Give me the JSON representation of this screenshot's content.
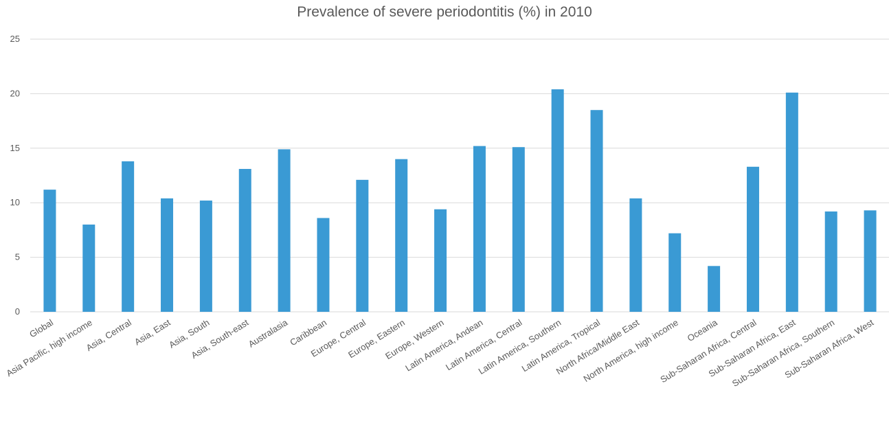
{
  "chart_data": {
    "type": "bar",
    "title": "Prevalence of severe periodontitis (%) in 2010",
    "xlabel": "",
    "ylabel": "",
    "ylim": [
      0,
      25
    ],
    "yticks": [
      0,
      5,
      10,
      15,
      20,
      25
    ],
    "grid": true,
    "legend": "none",
    "bar_color": "#3a9ad4",
    "categories": [
      "Global",
      "Asia Pacific, high income",
      "Asia, Central",
      "Asia, East",
      "Asia, South",
      "Asia, South-east",
      "Australasia",
      "Caribbean",
      "Europe, Central",
      "Europe, Eastern",
      "Europe, Western",
      "Latin America, Andean",
      "Latin America, Central",
      "Latin America, Southern",
      "Latin America, Tropical",
      "North Africa/Middle East",
      "North America, high income",
      "Oceania",
      "Sub-Saharan Africa, Central",
      "Sub-Saharan Africa, East",
      "Sub-Saharan Africa, Southern",
      "Sub-Saharan Africa, West"
    ],
    "values": [
      11.2,
      8.0,
      13.8,
      10.4,
      10.2,
      13.1,
      14.9,
      8.6,
      12.1,
      14.0,
      9.4,
      15.2,
      15.1,
      20.4,
      18.5,
      10.4,
      7.2,
      4.2,
      13.3,
      20.1,
      9.2,
      9.3
    ]
  }
}
